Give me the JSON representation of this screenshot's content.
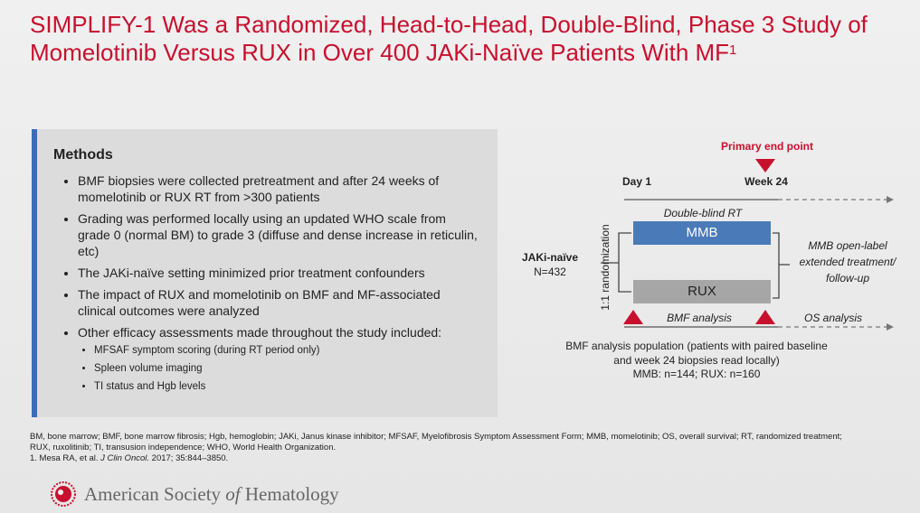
{
  "header": {
    "title": "SIMPLIFY-1 Was a Randomized, Head-to-Head, Double-Blind, Phase 3 Study of Momelotinib Versus RUX in Over 400 JAKi-Naïve Patients With MF",
    "title_sup": "1"
  },
  "methods": {
    "heading": "Methods",
    "bullets": [
      "BMF biopsies were collected pretreatment and after 24 weeks of momelotinib or RUX RT from >300 patients",
      "Grading was performed locally using an updated WHO scale from grade 0 (normal BM) to grade 3 (diffuse and dense increase in reticulin, etc)",
      "The JAKi-naïve setting minimized prior treatment confounders",
      "The impact of RUX and momelotinib on BMF and MF-associated clinical outcomes were analyzed",
      "Other efficacy assessments made throughout the study included:"
    ],
    "sub_bullets": [
      "MFSAF symptom scoring (during RT period only)",
      "Spleen volume imaging",
      "TI status and Hgb levels"
    ]
  },
  "diagram": {
    "primary_end_point": "Primary end point",
    "day1": "Day 1",
    "week24": "Week 24",
    "double_blind": "Double-blind RT",
    "arm1": "MMB",
    "arm2": "RUX",
    "randomization": "1:1 randomization",
    "population_label": "JAKi-naïve",
    "population_n": "N=432",
    "extension": [
      "MMB open-label",
      "extended treatment/",
      "follow-up"
    ],
    "bmf_analysis": "BMF analysis",
    "os_analysis": "OS analysis",
    "bmf_population": [
      "BMF analysis population (patients with paired baseline",
      "and week 24 biopsies read locally)",
      "MMB: n=144; RUX: n=160"
    ]
  },
  "footer": {
    "abbreviations": "BM, bone marrow; BMF, bone marrow fibrosis; Hgb, hemoglobin; JAKi, Janus kinase inhibitor; MFSAF, Myelofibrosis Symptom Assessment Form; MMB, momelotinib; OS, overall survival; RT, randomized treatment; RUX, ruxolitinib; TI, transusion independence; WHO, World Health Organization.",
    "reference_prefix": "1. Mesa RA, et al. ",
    "reference_journal": "J Clin Oncol.",
    "reference_suffix": " 2017; 35:844–3850.",
    "logo_part1": "American Society ",
    "logo_part2": "of",
    "logo_part3": " Hematology"
  }
}
